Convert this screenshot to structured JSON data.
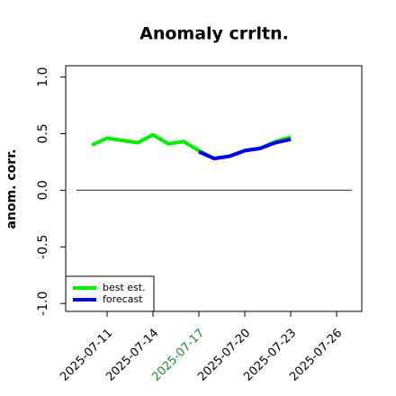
{
  "chart_data": {
    "type": "line",
    "title": "Anomaly crrltn.",
    "ylabel": "anom. corr.",
    "x": [
      "2025-07-10",
      "2025-07-11",
      "2025-07-12",
      "2025-07-13",
      "2025-07-14",
      "2025-07-15",
      "2025-07-16",
      "2025-07-17",
      "2025-07-18",
      "2025-07-19",
      "2025-07-20",
      "2025-07-21",
      "2025-07-22",
      "2025-07-23"
    ],
    "series": [
      {
        "name": "best est.",
        "color": "#00ee00",
        "values": [
          0.4,
          0.46,
          0.44,
          0.42,
          0.49,
          0.41,
          0.43,
          0.35,
          0.28,
          0.3,
          0.35,
          0.37,
          0.43,
          0.47
        ]
      },
      {
        "name": "forecast",
        "color": "#0000ee",
        "values": [
          null,
          null,
          null,
          null,
          null,
          null,
          null,
          0.34,
          0.28,
          0.3,
          0.35,
          0.37,
          0.42,
          0.45
        ]
      }
    ],
    "xlim": [
      "2025-07-08",
      "2025-07-28"
    ],
    "xticks": [
      "2025-07-11",
      "2025-07-14",
      "2025-07-17",
      "2025-07-20",
      "2025-07-23",
      "2025-07-26"
    ],
    "highlighted_xtick": "2025-07-17",
    "highlight_color": "#228b22",
    "ylim": [
      -1.07,
      1.1
    ],
    "yticks": [
      {
        "value": -1,
        "label": "-1.0"
      },
      -0.5,
      {
        "value": 0,
        "label": "0.0"
      },
      0.5,
      {
        "value": 1,
        "label": "1.0"
      }
    ],
    "hline": {
      "y": 0,
      "x": [
        "2025-07-09",
        "2025-07-27"
      ]
    },
    "legend": "bottom-left"
  }
}
